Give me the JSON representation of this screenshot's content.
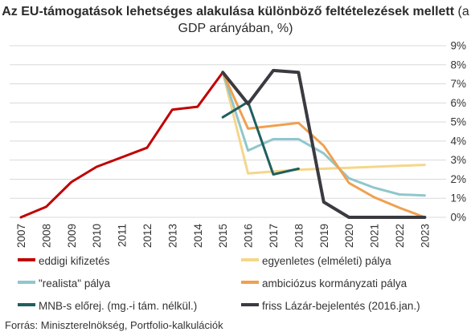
{
  "title_bold": "Az EU-támogatások lehetséges alakulása különböző feltételezések mellett",
  "title_normal": "(a GDP arányában, %)",
  "source": "Forrás: Miniszterelnökség, Portfolio-kalkulációk",
  "chart_data": {
    "type": "line",
    "x": [
      2007,
      2008,
      2009,
      2010,
      2011,
      2012,
      2013,
      2014,
      2015,
      2016,
      2017,
      2018,
      2019,
      2020,
      2021,
      2022,
      2023
    ],
    "x_tick_labels": [
      "2007",
      "2008",
      "2009",
      "2010",
      "2011",
      "2012",
      "2013",
      "2014",
      "2015",
      "2016",
      "2017",
      "2018",
      "2019",
      "2020",
      "2021",
      "2022",
      "2023"
    ],
    "y_tick_labels": [
      "0%",
      "1%",
      "2%",
      "3%",
      "4%",
      "5%",
      "6%",
      "7%",
      "8%",
      "9%"
    ],
    "ylim": [
      0,
      9
    ],
    "y_axis_position": "right",
    "grid": true,
    "legend_position": "bottom",
    "series": [
      {
        "name": "eddigi kifizetés",
        "color": "#c00000",
        "x": [
          2007,
          2008,
          2009,
          2010,
          2011,
          2012,
          2013,
          2014,
          2015
        ],
        "values": [
          0.0,
          0.55,
          1.85,
          2.65,
          3.15,
          3.65,
          5.65,
          5.8,
          7.6
        ]
      },
      {
        "name": "egyenletes (elméleti) pálya",
        "color": "#f5d68a",
        "x": [
          2015,
          2016,
          2017,
          2018,
          2019,
          2020,
          2021,
          2022,
          2023
        ],
        "values": [
          7.6,
          2.3,
          2.4,
          2.5,
          2.55,
          2.6,
          2.65,
          2.7,
          2.75
        ]
      },
      {
        "name": "\"realista\" pálya",
        "color": "#8fc7cc",
        "x": [
          2015,
          2016,
          2017,
          2018,
          2019,
          2020,
          2021,
          2022,
          2023
        ],
        "values": [
          7.6,
          3.5,
          4.1,
          4.1,
          3.35,
          2.05,
          1.55,
          1.2,
          1.15
        ]
      },
      {
        "name": "ambiciózus kormányzati pálya",
        "color": "#f0a050",
        "x": [
          2015,
          2016,
          2017,
          2018,
          2019,
          2020,
          2021,
          2022,
          2023
        ],
        "values": [
          7.6,
          4.65,
          4.8,
          4.95,
          3.75,
          1.8,
          1.05,
          0.5,
          0.0
        ]
      },
      {
        "name": "MNB-s előrej. (mg.-i tám. nélkül.)",
        "color": "#1f5f5f",
        "x": [
          2015,
          2016,
          2017,
          2018
        ],
        "values": [
          5.25,
          6.05,
          2.25,
          2.55
        ]
      },
      {
        "name": "friss Lázár-bejelentés (2016.jan.)",
        "color": "#3a3a40",
        "x": [
          2015,
          2016,
          2017,
          2018,
          2019,
          2020,
          2021,
          2022,
          2023
        ],
        "values": [
          7.6,
          5.95,
          7.7,
          7.6,
          0.8,
          0.0,
          0.0,
          0.0,
          0.0
        ]
      }
    ]
  }
}
